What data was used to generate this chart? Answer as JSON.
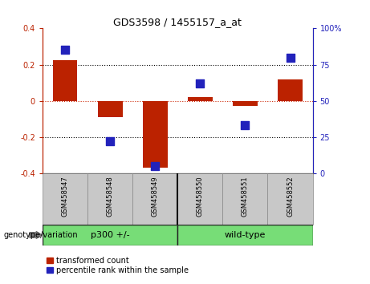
{
  "title": "GDS3598 / 1455157_a_at",
  "samples": [
    "GSM458547",
    "GSM458548",
    "GSM458549",
    "GSM458550",
    "GSM458551",
    "GSM458552"
  ],
  "red_values": [
    0.225,
    -0.09,
    -0.37,
    0.02,
    -0.03,
    0.12
  ],
  "blue_values": [
    85,
    22,
    5,
    62,
    33,
    80
  ],
  "ylim_left": [
    -0.4,
    0.4
  ],
  "ylim_right": [
    0,
    100
  ],
  "yticks_left": [
    -0.4,
    -0.2,
    0.0,
    0.2,
    0.4
  ],
  "yticks_right": [
    0,
    25,
    50,
    75,
    100
  ],
  "hlines_dotted": [
    0.2,
    -0.2
  ],
  "bar_color": "#BB2200",
  "dot_color": "#2222BB",
  "bar_width": 0.55,
  "dot_size": 45,
  "tick_label_bg": "#C8C8C8",
  "group1_label": "p300 +/-",
  "group2_label": "wild-type",
  "group_color": "#77DD77",
  "group_border_color": "#222222",
  "legend_labels": [
    "transformed count",
    "percentile rank within the sample"
  ],
  "xlabel_group": "genotype/variation",
  "left_axis_color": "#BB2200",
  "right_axis_color": "#2222BB",
  "zero_line_color": "#CC2200",
  "dotted_line_color": "#000000",
  "fig_bg": "#FFFFFF",
  "plot_bg": "#FFFFFF",
  "sample_box_border": "#888888"
}
